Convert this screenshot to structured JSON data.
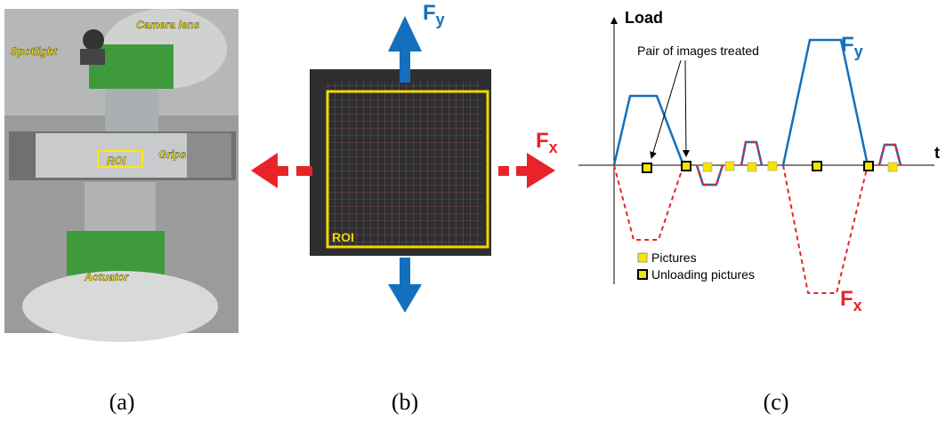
{
  "panel_a": {
    "labels": [
      "Spotlight",
      "Camera lens",
      "ROI",
      "Grips",
      "Actuator"
    ],
    "caption": "(a)"
  },
  "panel_b": {
    "force_y": {
      "symbol": "F",
      "subscript": "y"
    },
    "force_x": {
      "symbol": "F",
      "subscript": "x"
    },
    "roi_label": "ROI",
    "caption": "(b)"
  },
  "panel_c": {
    "y_axis_label": "Load",
    "x_axis_label": "t",
    "annotation": "Pair of images treated",
    "force_y": {
      "symbol": "F",
      "subscript": "y"
    },
    "force_x": {
      "symbol": "F",
      "subscript": "x"
    },
    "legend": [
      "Pictures",
      "Unloading pictures"
    ],
    "caption": "(c)"
  }
}
